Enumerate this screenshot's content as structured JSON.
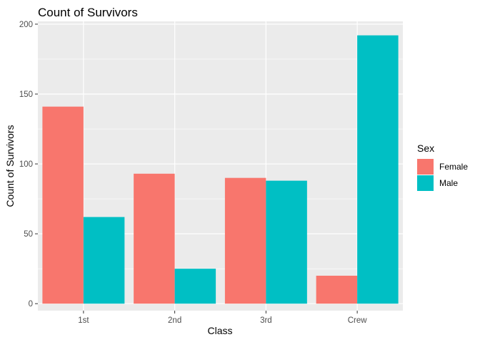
{
  "chart_data": {
    "type": "bar",
    "title": "Count of Survivors",
    "xlabel": "Class",
    "ylabel": "Count of Survivors",
    "categories": [
      "1st",
      "2nd",
      "3rd",
      "Crew"
    ],
    "series": [
      {
        "name": "Female",
        "color": "#F8766D",
        "values": [
          141,
          93,
          90,
          20
        ]
      },
      {
        "name": "Male",
        "color": "#00BFC4",
        "values": [
          62,
          25,
          88,
          192
        ]
      }
    ],
    "ylim": [
      -5,
      202
    ],
    "yticks": [
      0,
      50,
      100,
      150,
      200
    ],
    "grid": true,
    "legend": {
      "title": "Sex",
      "position": "right"
    },
    "panel_background": "#EBEBEB",
    "grid_color": "#FFFFFF"
  }
}
